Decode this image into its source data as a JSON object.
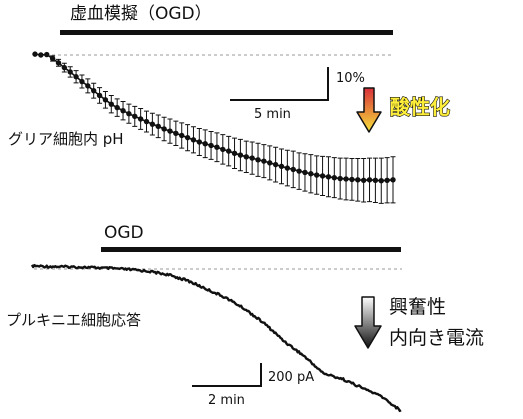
{
  "chart_data": [
    {
      "type": "line",
      "title": "虚血模擬（OGD）",
      "trace_label": "グリア細胞内 pH",
      "effect_label": "酸性化",
      "effect_colors": {
        "arrow_top": "#d9303a",
        "arrow_bottom": "#f6e23a",
        "text_fill": "#ffef3a",
        "text_stroke": "#111111"
      },
      "scale_bar": {
        "x_label": "5 min",
        "y_label": "10%"
      },
      "baseline": "dashed",
      "error_bars": true,
      "series": [
        {
          "values": [
            0.2,
            0.0,
            0.1,
            -0.8,
            -1.8,
            -2.9,
            -3.9,
            -5.0,
            -6.1,
            -7.1,
            -8.2,
            -9.3,
            -10.3,
            -11.3,
            -12.1,
            -12.8,
            -13.5,
            -14.1,
            -14.7,
            -15.3,
            -15.9,
            -16.4,
            -17.0,
            -17.5,
            -18.0,
            -18.5,
            -19.0,
            -19.5,
            -20.0,
            -20.4,
            -20.8,
            -21.2,
            -21.7,
            -22.1,
            -22.6,
            -23.0,
            -23.4,
            -23.7,
            -24.1,
            -24.4,
            -24.8,
            -25.2,
            -25.6,
            -26.0,
            -26.3,
            -26.7,
            -27.0,
            -27.3,
            -27.6,
            -27.8,
            -28.0,
            -28.2,
            -28.4,
            -28.5,
            -28.6,
            -28.7,
            -28.8,
            -28.7,
            -28.8,
            -28.9,
            -28.8,
            -28.7
          ],
          "errors": [
            0.3,
            0.3,
            0.3,
            0.6,
            0.8,
            1.0,
            1.2,
            1.4,
            1.5,
            1.6,
            1.7,
            1.8,
            1.9,
            2.0,
            2.0,
            2.1,
            2.2,
            2.3,
            2.4,
            2.4,
            2.5,
            2.6,
            2.7,
            2.8,
            2.8,
            2.9,
            3.0,
            3.0,
            3.1,
            3.2,
            3.2,
            3.3,
            3.4,
            3.4,
            3.5,
            3.6,
            3.6,
            3.7,
            3.8,
            3.8,
            3.9,
            4.0,
            4.0,
            4.1,
            4.2,
            4.2,
            4.3,
            4.4,
            4.4,
            4.5,
            4.6,
            4.6,
            4.7,
            4.8,
            4.8,
            4.9,
            5.0,
            5.0,
            5.1,
            5.2,
            5.2,
            5.3
          ]
        }
      ]
    },
    {
      "type": "line",
      "title": "OGD",
      "trace_label": "プルキニエ細胞応答",
      "effect_label": "興奮性\n内向き電流",
      "effect_colors": {
        "arrow_top": "#ffffff",
        "arrow_bottom": "#111111"
      },
      "scale_bar": {
        "x_label": "2 min",
        "y_label": "200 pA"
      },
      "baseline": "dashed",
      "series": [
        {
          "values": [
            0,
            -2,
            -3,
            -5,
            -8,
            -12,
            -18,
            -30,
            -50,
            -80,
            -110,
            -150,
            -200,
            -260,
            -310,
            -370,
            -390,
            -420,
            -450,
            -500
          ]
        }
      ]
    }
  ]
}
